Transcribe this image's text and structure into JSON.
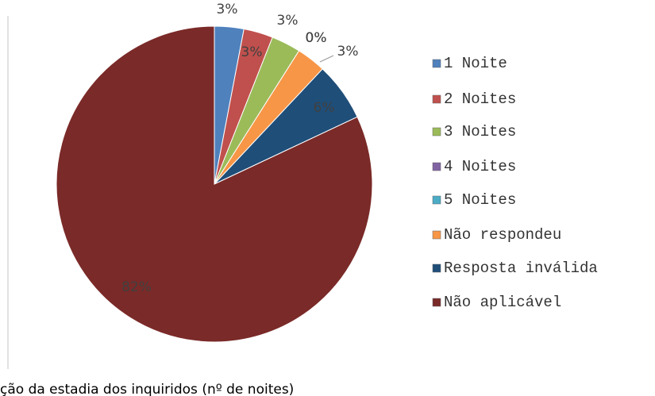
{
  "chart_data": {
    "type": "pie",
    "caption": "ção da estadia dos inquiridos (nº de noites)",
    "categories": [
      "1 Noite",
      "2 Noites",
      "3 Noites",
      "4 Noites",
      "5 Noites",
      "Não respondeu",
      "Resposta inválida",
      "Não aplicável"
    ],
    "values": [
      3,
      3,
      3,
      0,
      0,
      3,
      6,
      82
    ],
    "value_labels": [
      "3%",
      "3%",
      "3%",
      "0%",
      "0%",
      "3%",
      "6%",
      "82%"
    ],
    "colors": [
      "#4f81bd",
      "#c0504d",
      "#9bbb59",
      "#8064a2",
      "#4bacc6",
      "#f79646",
      "#1f4e79",
      "#7a2a28"
    ],
    "legend": "right"
  }
}
